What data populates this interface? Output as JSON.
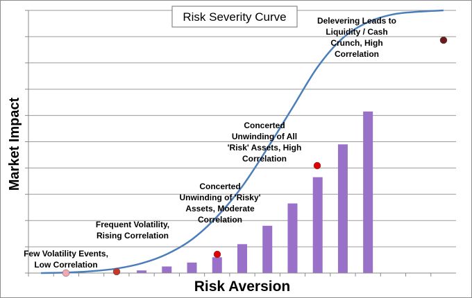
{
  "chart_data": {
    "type": "bar",
    "title": "Risk Severity Curve",
    "xlabel": "Risk Aversion",
    "ylabel": "Market Impact",
    "x": [
      1,
      2,
      3,
      4,
      5,
      6,
      7,
      8,
      9,
      10,
      11,
      12,
      13,
      14,
      15,
      16,
      17
    ],
    "xlim": [
      0.5,
      17.5
    ],
    "ylim": [
      0,
      10
    ],
    "grid": true,
    "legend": "none",
    "bar_color": "#9a71c9",
    "curve_color": "#4a7ebb",
    "bars": {
      "x": [
        5,
        6,
        7,
        8,
        9,
        10,
        11,
        12,
        13,
        14
      ],
      "values": [
        0.1,
        0.25,
        0.4,
        0.6,
        1.1,
        1.8,
        2.65,
        3.65,
        4.9,
        6.15
      ]
    },
    "curve": {
      "x": [
        1,
        2,
        3,
        4,
        5,
        6,
        7,
        8,
        9,
        10,
        11,
        12,
        13,
        14,
        15,
        16,
        17
      ],
      "values": [
        0,
        0.02,
        0.07,
        0.17,
        0.37,
        0.72,
        1.28,
        2.15,
        3.3,
        4.75,
        6.3,
        7.85,
        8.95,
        9.55,
        9.85,
        9.95,
        10
      ]
    },
    "markers": [
      {
        "x": 2,
        "value": 0.02,
        "color": "#f4a6b4"
      },
      {
        "x": 4,
        "value": 0.17,
        "color": "#c0392b"
      },
      {
        "x": 8,
        "value": 0.72,
        "color": "#e00000"
      },
      {
        "x": 12,
        "value": 3.75,
        "color": "#e00000"
      },
      {
        "x": 17,
        "value": 8.25,
        "color": "#6b1a1a"
      }
    ],
    "annotations": [
      {
        "lines": [
          "Few Volatility Events,",
          "Low Correlation"
        ]
      },
      {
        "lines": [
          "Frequent Volatility,",
          "Rising Correlation"
        ]
      },
      {
        "lines": [
          "Concerted",
          "Unwinding of 'Risky'",
          "Assets, Moderate",
          "Correlation"
        ]
      },
      {
        "lines": [
          "Concerted",
          "Unwinding of All",
          "'Risk' Assets, High",
          "Correlation"
        ]
      },
      {
        "lines": [
          "Delevering Leads to",
          "Liquidity / Cash",
          "Crunch, High",
          "Correlation"
        ]
      }
    ]
  }
}
